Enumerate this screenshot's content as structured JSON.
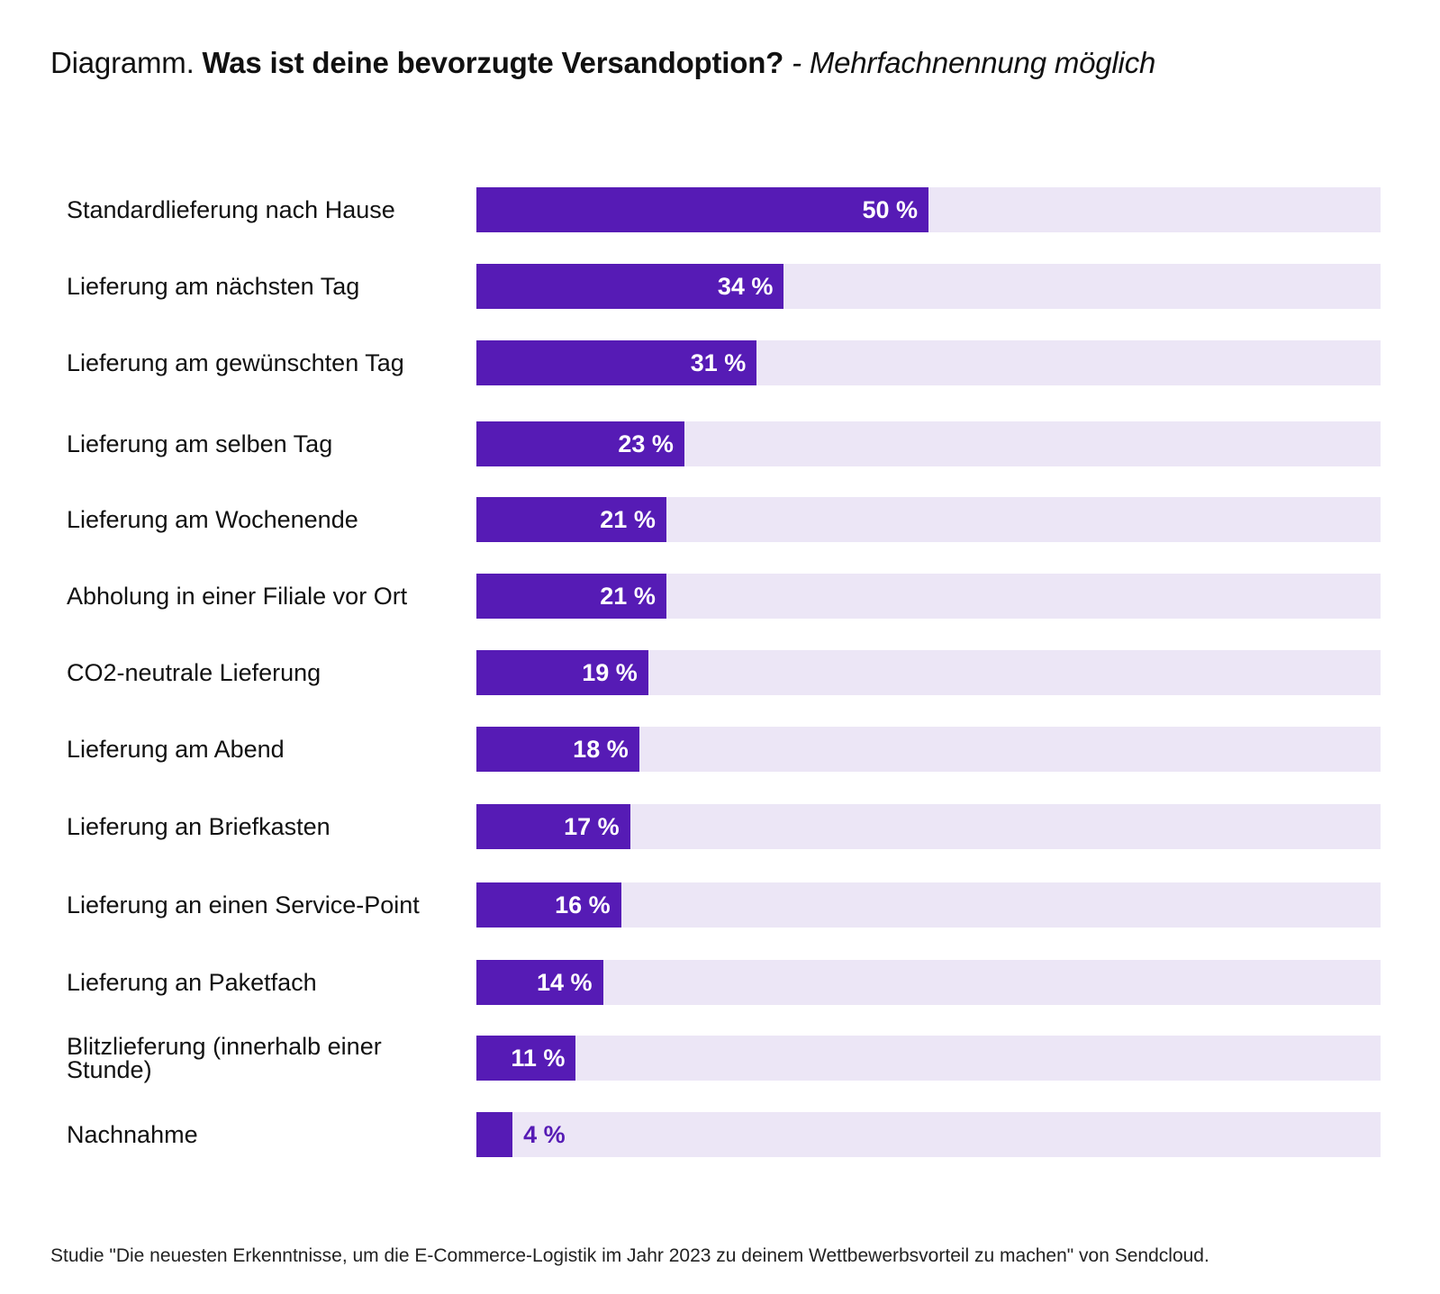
{
  "title": {
    "prefix": "Diagramm.",
    "question": "Was ist deine bevorzugte Versandoption?",
    "suffix": "- Mehrfachnennung möglich"
  },
  "chart_data": {
    "type": "bar",
    "orientation": "horizontal",
    "categories": [
      "Standardlieferung nach Hause",
      "Lieferung am nächsten Tag",
      "Lieferung am gewünschten Tag",
      "Lieferung am selben Tag",
      "Lieferung am Wochenende",
      "Abholung in einer Filiale vor Ort",
      "CO2-neutrale Lieferung",
      "Lieferung am Abend",
      "Lieferung an Briefkasten",
      "Lieferung an einen Service-Point",
      "Lieferung an Paketfach",
      "Blitzlieferung (innerhalb einer Stunde)",
      "Nachnahme"
    ],
    "values": [
      50,
      34,
      31,
      23,
      21,
      21,
      19,
      18,
      17,
      16,
      14,
      11,
      4
    ],
    "value_labels": [
      "50 %",
      "34 %",
      "31 %",
      "23 %",
      "21 %",
      "21 %",
      "19 %",
      "18 %",
      "17 %",
      "16 %",
      "14 %",
      "11 %",
      "4 %"
    ],
    "unit": "%",
    "xlim": [
      0,
      100
    ],
    "grid": false,
    "legend": "none",
    "colors": {
      "bar": "#561bb5",
      "track": "#ece6f6",
      "label_inside": "#ffffff",
      "label_outside": "#561bb5"
    }
  },
  "footer": "Studie \"Die neuesten Erkenntnisse, um die E-Commerce-Logistik im Jahr 2023 zu deinem Wettbewerbsvorteil zu machen\" von Sendcloud."
}
